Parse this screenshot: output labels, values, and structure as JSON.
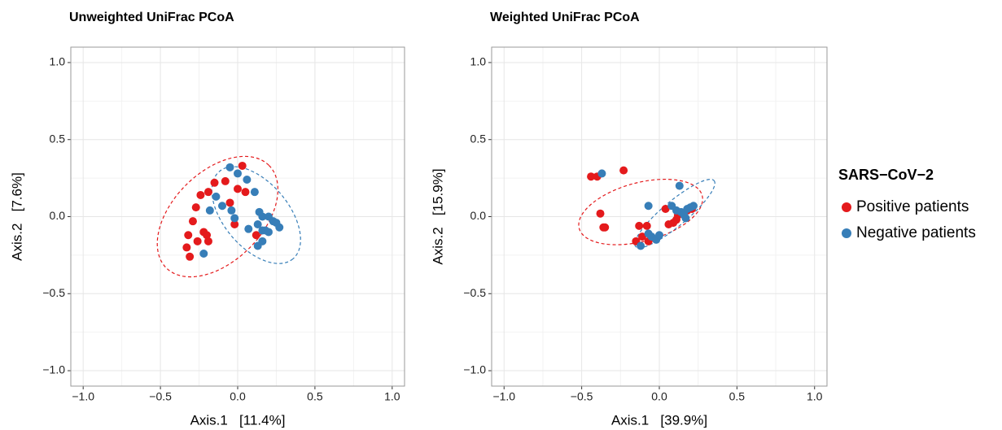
{
  "chart_data": [
    {
      "type": "scatter",
      "title": "Unweighted UniFrac PCoA",
      "x_label": "Axis.1   [11.4%]",
      "y_label": "Axis.2   [7.6%]",
      "xlim": [
        -1.08,
        1.08
      ],
      "ylim": [
        -1.1,
        1.1
      ],
      "xticks": [
        {
          "value": -1,
          "label": "−1.0"
        },
        {
          "value": -0.5,
          "label": "−0.5"
        },
        {
          "value": 0,
          "label": "0.0"
        },
        0.5,
        {
          "value": 1,
          "label": "1.0"
        }
      ],
      "yticks": [
        {
          "value": -1,
          "label": "−1.0"
        },
        {
          "value": -0.5,
          "label": "−0.5"
        },
        {
          "value": 0,
          "label": "0.0"
        },
        0.5,
        {
          "value": 1,
          "label": "1.0"
        }
      ],
      "grid": true,
      "series": [
        {
          "color": "#e41a1c",
          "x": [
            0.03,
            -0.15,
            -0.08,
            -0.24,
            -0.19,
            0,
            0.05,
            -0.05,
            -0.27,
            -0.29,
            -0.32,
            -0.22,
            -0.2,
            -0.19,
            -0.26,
            -0.33,
            -0.31,
            -0.02,
            0.12
          ],
          "values": [
            0.33,
            0.22,
            0.23,
            0.14,
            0.16,
            0.18,
            0.16,
            0.09,
            0.06,
            -0.03,
            -0.12,
            -0.1,
            -0.12,
            -0.16,
            -0.16,
            -0.2,
            -0.26,
            -0.05,
            -0.12
          ],
          "ellipse": {
            "cx": -0.13,
            "cy": 0,
            "rx": 0.47,
            "ry": 0.29,
            "angle": 45
          }
        },
        {
          "color": "#377eb8",
          "x": [
            -0.05,
            0,
            0.06,
            0.11,
            -0.14,
            -0.1,
            -0.18,
            -0.04,
            -0.02,
            0.07,
            0.14,
            0.16,
            0.2,
            0.23,
            0.25,
            0.27,
            0.13,
            0.16,
            0.18,
            0.2,
            0.13,
            0.16,
            -0.22
          ],
          "values": [
            0.32,
            0.28,
            0.24,
            0.16,
            0.13,
            0.07,
            0.04,
            0.04,
            -0.01,
            -0.08,
            0.03,
            0,
            0,
            -0.03,
            -0.04,
            -0.07,
            -0.05,
            -0.09,
            -0.09,
            -0.1,
            -0.19,
            -0.16,
            -0.24
          ],
          "ellipse": {
            "cx": 0.12,
            "cy": 0.01,
            "rx": 0.37,
            "ry": 0.21,
            "angle": -50
          }
        }
      ]
    },
    {
      "type": "scatter",
      "title": "Weighted UniFrac PCoA",
      "x_label": "Axis.1   [39.9%]",
      "y_label": "Axis.2   [15.9%]",
      "xlim": [
        -1.08,
        1.08
      ],
      "ylim": [
        -1.1,
        1.1
      ],
      "xticks": [
        {
          "value": -1,
          "label": "−1.0"
        },
        {
          "value": -0.5,
          "label": "−0.5"
        },
        {
          "value": 0,
          "label": "0.0"
        },
        0.5,
        {
          "value": 1,
          "label": "1.0"
        }
      ],
      "yticks": [
        {
          "value": -1,
          "label": "−1.0"
        },
        {
          "value": -0.5,
          "label": "−0.5"
        },
        {
          "value": 0,
          "label": "0.0"
        },
        0.5,
        {
          "value": 1,
          "label": "1.0"
        }
      ],
      "grid": true,
      "legend_title": "SARS−CoV−2",
      "legend": "right",
      "series": [
        {
          "name": "Positive patients",
          "color": "#e41a1c",
          "x": [
            -0.44,
            -0.4,
            -0.23,
            -0.38,
            -0.35,
            -0.36,
            -0.13,
            -0.08,
            -0.15,
            -0.11,
            -0.07,
            0.04,
            0.06,
            0.11,
            0.12,
            0.09,
            0.18,
            0.21
          ],
          "values": [
            0.26,
            0.26,
            0.3,
            0.02,
            -0.07,
            -0.07,
            -0.06,
            -0.06,
            -0.16,
            -0.13,
            -0.16,
            0.05,
            -0.05,
            -0.02,
            0.01,
            -0.04,
            0.04,
            0.05
          ],
          "ellipse": {
            "cx": -0.12,
            "cy": 0.03,
            "rx": 0.41,
            "ry": 0.19,
            "angle": 15
          }
        },
        {
          "name": "Negative patients",
          "color": "#377eb8",
          "x": [
            -0.37,
            0.13,
            -0.07,
            0.08,
            0.11,
            0.14,
            0.16,
            0.18,
            0.2,
            0.22,
            0.17,
            -0.07,
            -0.05,
            -0.02,
            -0.12,
            0
          ],
          "values": [
            0.28,
            0.2,
            0.07,
            0.07,
            0.04,
            0.03,
            0.01,
            0.05,
            0.06,
            0.07,
            -0.01,
            -0.11,
            -0.13,
            -0.15,
            -0.19,
            -0.12
          ],
          "ellipse": {
            "cx": 0.1,
            "cy": 0.02,
            "rx": 0.33,
            "ry": 0.08,
            "angle": 40
          }
        }
      ]
    }
  ]
}
